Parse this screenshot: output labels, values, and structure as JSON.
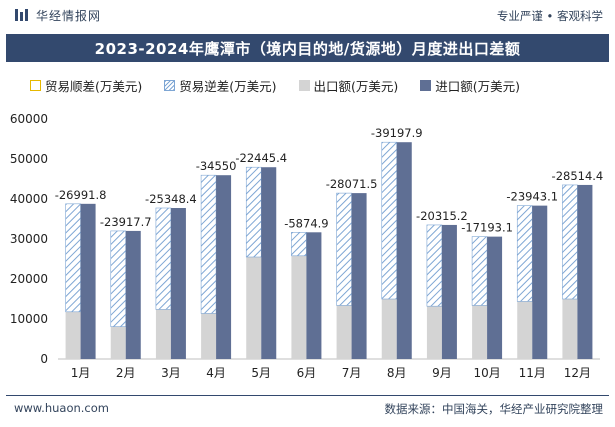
{
  "header": {
    "brand": "华经情报网",
    "tagline": "专业严谨 • 客观科学"
  },
  "title": "2023-2024年鹰潭市（境内目的地/货源地）月度进出口差额",
  "legend": {
    "surplus": "贸易顺差(万美元)",
    "deficit": "贸易逆差(万美元)",
    "export": "出口额(万美元)",
    "import": "进口额(万美元)"
  },
  "footer": {
    "left": "www.huaon.com",
    "right": "数据来源：中国海关，华经产业研究院整理"
  },
  "colors": {
    "export": "#d4d4d4",
    "import": "#5f6f94",
    "deficit_hatch": "#7ea6d4",
    "surplus": "#e6b800",
    "title_bg": "#33496e"
  },
  "chart_data": {
    "type": "bar",
    "categories": [
      "1月",
      "2月",
      "3月",
      "4月",
      "5月",
      "6月",
      "7月",
      "8月",
      "9月",
      "10月",
      "11月",
      "12月"
    ],
    "series": [
      {
        "name": "出口额(万美元)",
        "values": [
          11800,
          8100,
          12400,
          11400,
          25500,
          25800,
          13400,
          15000,
          13200,
          13400,
          14400,
          15000
        ]
      },
      {
        "name": "进口额(万美元)",
        "values": [
          38792,
          32018,
          37748,
          45950,
          47945,
          31675,
          41472,
          54198,
          33515,
          30593,
          38343,
          43514
        ]
      },
      {
        "name": "贸易逆差(万美元)",
        "values": [
          -26991.8,
          -23917.7,
          -25348.4,
          -34550,
          -22445.4,
          -5874.9,
          -28071.5,
          -39197.9,
          -20315.2,
          -17193.1,
          -23943.1,
          -28514.4
        ]
      }
    ],
    "data_labels": [
      "-26991.8",
      "-23917.7",
      "-25348.4",
      "-34550",
      "-22445.4",
      "-5874.9",
      "-28071.5",
      "-39197.9",
      "-20315.2",
      "-17193.1",
      "-23943.1",
      "-28514.4"
    ],
    "y_ticks": [
      "0",
      "10000",
      "20000",
      "30000",
      "40000",
      "50000",
      "60000"
    ],
    "ylim": [
      0,
      60000
    ],
    "grid": false,
    "legend_position": "top"
  }
}
